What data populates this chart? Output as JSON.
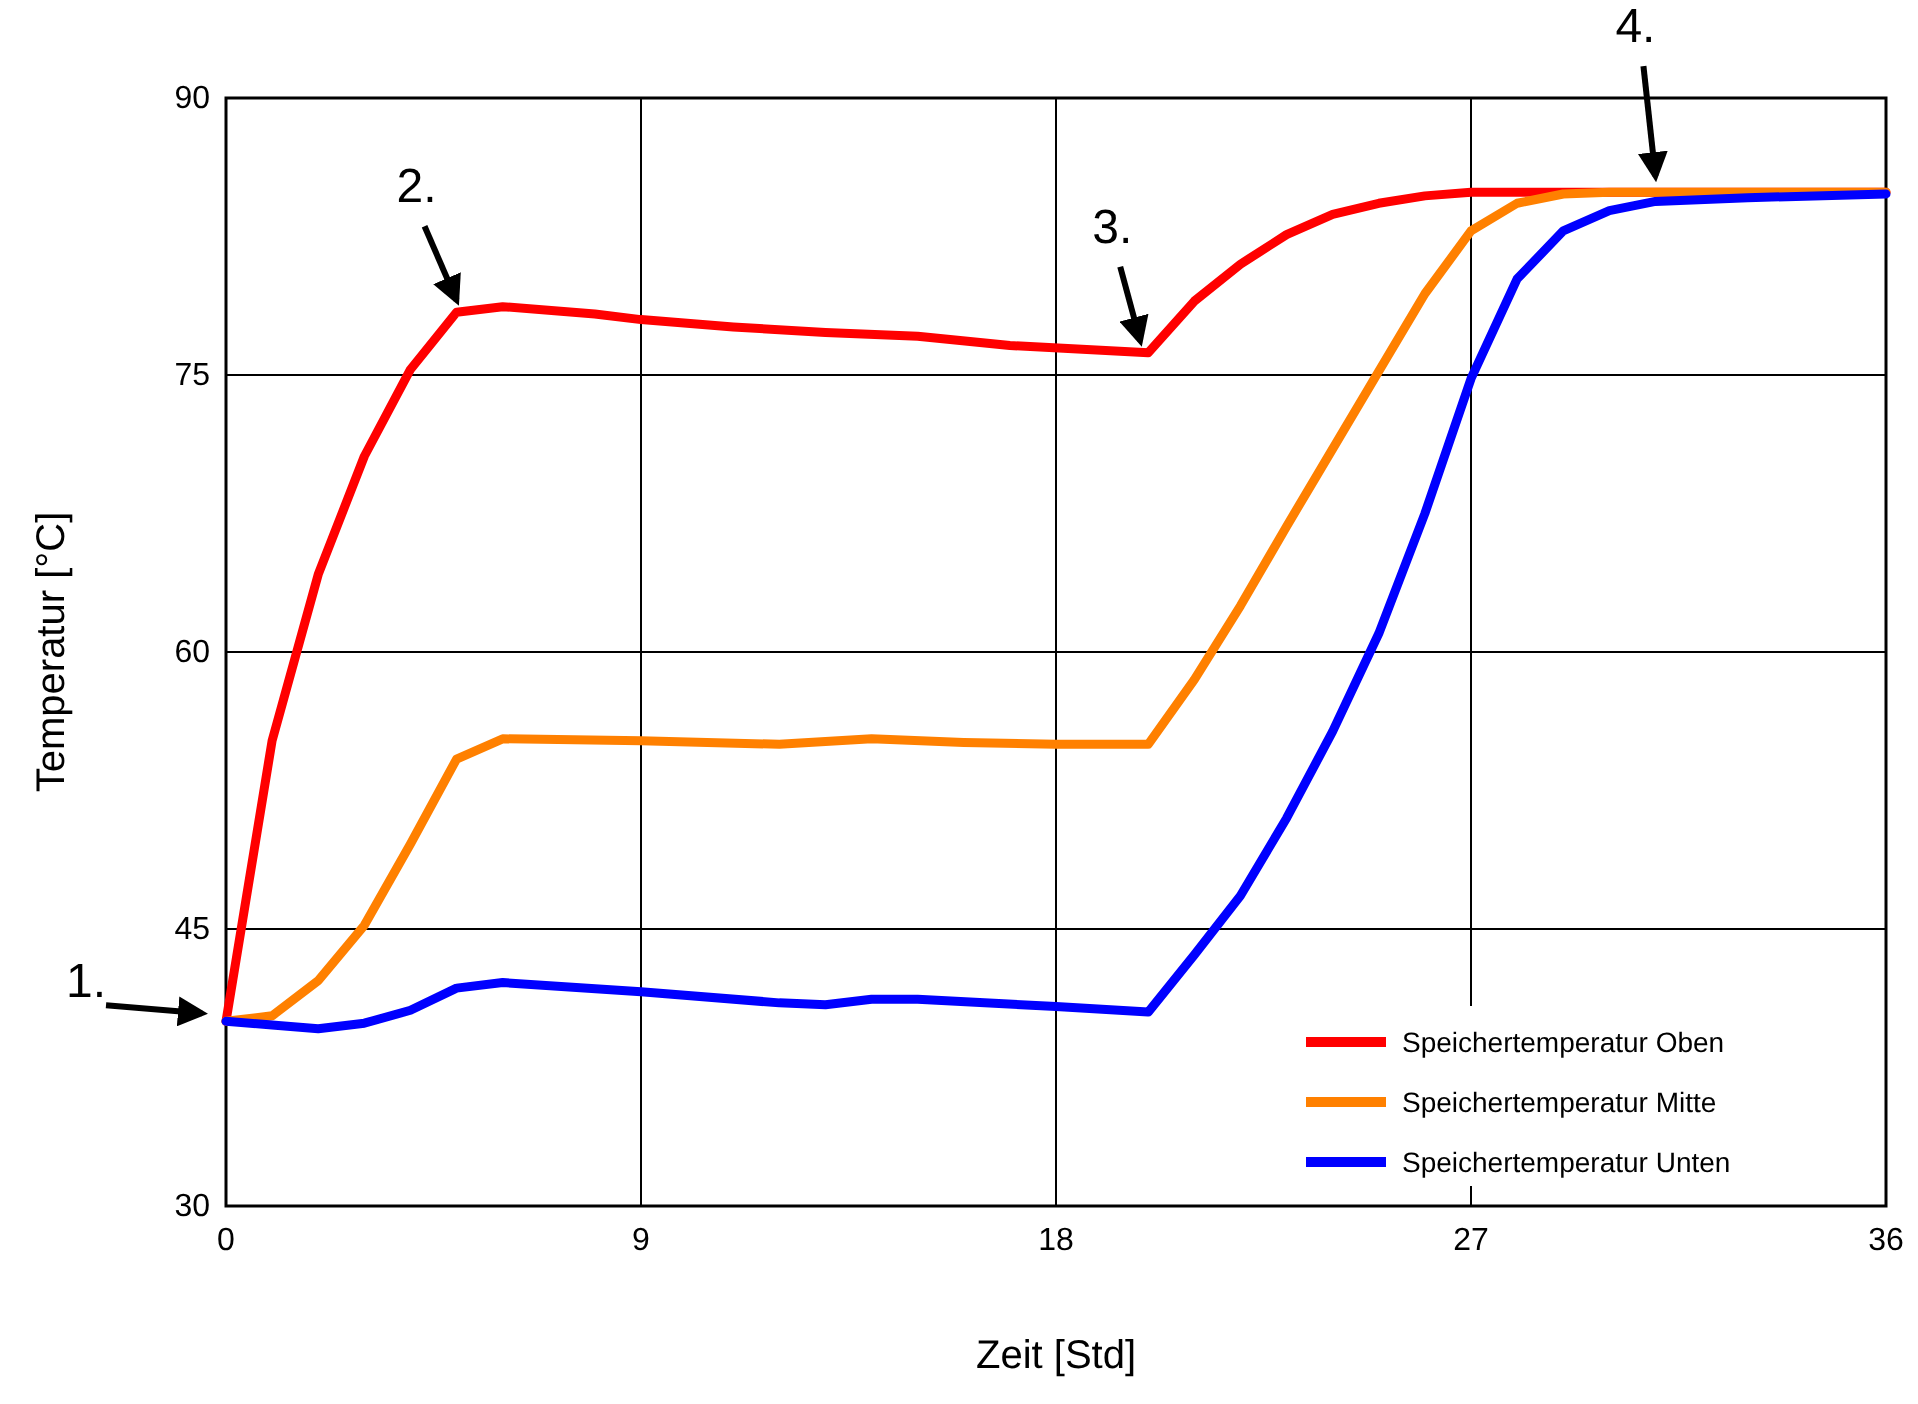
{
  "chart_data": {
    "type": "line",
    "xlabel": "Zeit  [Std]",
    "ylabel": "Temperatur [°C]",
    "xlim": [
      0,
      36
    ],
    "xticks": [
      0,
      9,
      18,
      27,
      36
    ],
    "ylim": [
      30,
      90
    ],
    "yticks": [
      30,
      45,
      60,
      75,
      90
    ],
    "grid": true,
    "legend": "bottom right",
    "line_style": "solid",
    "marker": "none",
    "series": [
      {
        "name": "Speichertemperatur Oben",
        "color": "#ff0000",
        "x": [
          0,
          1,
          2,
          3,
          4,
          5,
          6,
          8,
          9,
          11,
          13,
          15,
          17,
          20,
          21,
          22,
          23,
          24,
          25,
          26,
          27,
          36
        ],
        "values": [
          40,
          55.2,
          64.2,
          70.6,
          75.3,
          78.4,
          78.7,
          78.3,
          78.0,
          77.6,
          77.3,
          77.1,
          76.6,
          76.2,
          79,
          81,
          82.6,
          83.7,
          84.3,
          84.7,
          84.9,
          84.9
        ]
      },
      {
        "name": "Speichertemperatur Mitte",
        "color": "#ff8000",
        "x": [
          0,
          1,
          2,
          3,
          4,
          5,
          6,
          9,
          12,
          14,
          16,
          18,
          20,
          21,
          22,
          23,
          24,
          25,
          26,
          27,
          28,
          29,
          30,
          36
        ],
        "values": [
          40,
          40.3,
          42.2,
          45.2,
          49.6,
          54.2,
          55.3,
          55.2,
          55.0,
          55.3,
          55.1,
          55.0,
          55.0,
          58.5,
          62.5,
          66.8,
          71.0,
          75.2,
          79.4,
          82.8,
          84.3,
          84.8,
          84.9,
          84.9
        ]
      },
      {
        "name": "Speichertemperatur Unten",
        "color": "#0000ff",
        "x": [
          0,
          1,
          2,
          3,
          4,
          5,
          6,
          9,
          12,
          13,
          14,
          15,
          18,
          20,
          21,
          22,
          23,
          24,
          25,
          26,
          27,
          28,
          29,
          30,
          31,
          33,
          36
        ],
        "values": [
          40,
          39.8,
          39.6,
          39.9,
          40.6,
          41.8,
          42.1,
          41.6,
          41.0,
          40.9,
          41.2,
          41.2,
          40.8,
          40.5,
          43.6,
          46.8,
          51,
          55.7,
          61,
          67.5,
          74.8,
          80.2,
          82.8,
          83.9,
          84.4,
          84.6,
          84.8
        ]
      }
    ],
    "annotations": [
      {
        "text": "1.",
        "x": 0,
        "y": 40
      },
      {
        "text": "2.",
        "x": 5,
        "y": 78.4
      },
      {
        "text": "3.",
        "x": 20,
        "y": 76.2
      },
      {
        "text": "4.",
        "x": 31,
        "y": 84.9
      }
    ]
  }
}
